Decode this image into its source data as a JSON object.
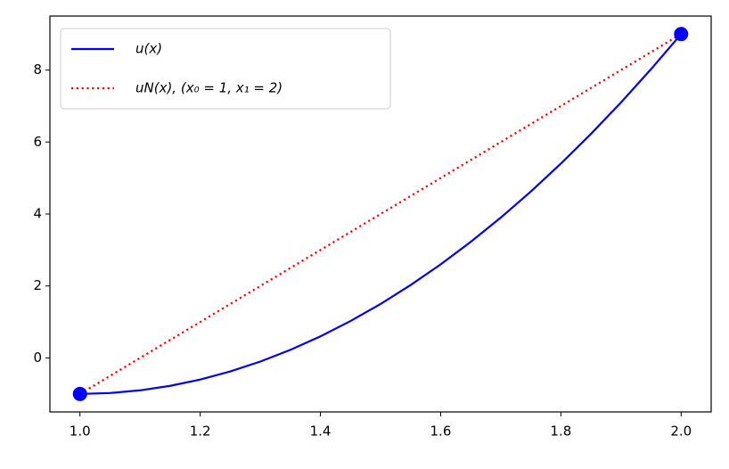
{
  "chart_data": {
    "type": "line",
    "xlim": [
      0.95,
      2.05
    ],
    "ylim": [
      -1.5,
      9.5
    ],
    "xticks": [
      {
        "value": 1.0,
        "label": "1.0"
      },
      1.2,
      1.4,
      1.6,
      1.8,
      {
        "value": 2.0,
        "label": "2.0"
      }
    ],
    "yticks": [
      0,
      2,
      4,
      6,
      8
    ],
    "legend": "upper left",
    "series": [
      {
        "name": "u(x)",
        "color": "#0000ff",
        "style": "solid",
        "x": [
          1.0,
          1.05,
          1.1,
          1.15,
          1.2,
          1.25,
          1.3,
          1.35,
          1.4,
          1.45,
          1.5,
          1.55,
          1.6,
          1.65,
          1.7,
          1.75,
          1.8,
          1.85,
          1.9,
          1.95,
          2.0
        ],
        "values": [
          -1.0,
          -0.975,
          -0.9,
          -0.775,
          -0.6,
          -0.375,
          -0.1,
          0.225,
          0.6,
          1.025,
          1.5,
          2.025,
          2.6,
          3.225,
          3.9,
          4.625,
          5.4,
          6.225,
          7.1,
          8.025,
          9.0
        ]
      },
      {
        "name": "uN(x), (x₀ = 1, x₁ = 2)",
        "color": "#ff0000",
        "style": "dotted",
        "x": [
          1.0,
          2.0
        ],
        "values": [
          -1.0,
          9.0
        ]
      }
    ],
    "points": {
      "color": "#0000ff",
      "x": [
        1.0,
        2.0
      ],
      "values": [
        -1.0,
        9.0
      ]
    }
  }
}
